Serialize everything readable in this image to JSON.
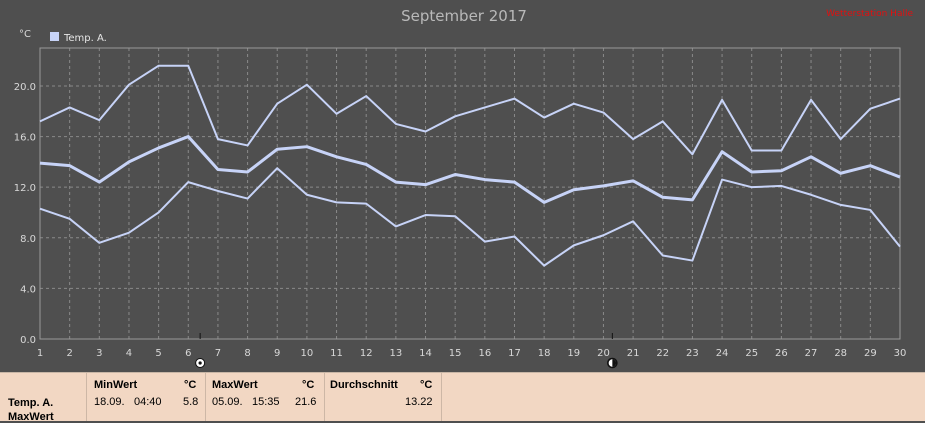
{
  "chart_data": {
    "type": "line",
    "title": "September 2017",
    "corner_label": "Wetterstation Halle",
    "y_unit": "°C",
    "legend": [
      "Temp. A."
    ],
    "x": [
      1,
      2,
      3,
      4,
      5,
      6,
      7,
      8,
      9,
      10,
      11,
      12,
      13,
      14,
      15,
      16,
      17,
      18,
      19,
      20,
      21,
      22,
      23,
      24,
      25,
      26,
      27,
      28,
      29,
      30
    ],
    "ylim": [
      0,
      23
    ],
    "y_ticks": [
      "0.0",
      "4.0",
      "8.0",
      "12.0",
      "16.0",
      "20.0"
    ],
    "grid": true,
    "markers": [
      {
        "x": 6.4,
        "symbol": "sun"
      },
      {
        "x": 20.3,
        "symbol": "moon"
      }
    ],
    "series": [
      {
        "values": [
          17.2,
          18.3,
          17.3,
          20.1,
          21.6,
          21.6,
          15.8,
          15.3,
          18.6,
          20.1,
          17.8,
          19.2,
          17.0,
          16.4,
          17.6,
          18.3,
          19.0,
          17.5,
          18.6,
          17.9,
          15.8,
          17.2,
          14.6,
          18.9,
          14.9,
          14.9,
          18.9,
          15.8,
          18.2,
          19.0
        ]
      },
      {
        "values": [
          13.9,
          13.7,
          12.4,
          14.0,
          15.1,
          16.0,
          13.4,
          13.2,
          15.0,
          15.2,
          14.4,
          13.8,
          12.4,
          12.2,
          13.0,
          12.6,
          12.4,
          10.8,
          11.8,
          12.1,
          12.5,
          11.2,
          11.0,
          14.8,
          13.2,
          13.3,
          14.4,
          13.1,
          13.7,
          12.8
        ]
      },
      {
        "values": [
          10.3,
          9.5,
          7.6,
          8.4,
          10.0,
          12.4,
          11.7,
          11.1,
          13.5,
          11.4,
          10.8,
          10.7,
          8.9,
          9.8,
          9.7,
          7.7,
          8.1,
          5.8,
          7.4,
          8.2,
          9.3,
          6.6,
          6.2,
          12.6,
          12.0,
          12.1,
          11.4,
          10.6,
          10.2,
          7.3
        ]
      }
    ]
  },
  "stats": {
    "row_label_1": "Temp. A.",
    "row_label_2": "MaxWert",
    "min": {
      "header": "MinWert",
      "unit": "°C",
      "date": "18.09.",
      "time": "04:40",
      "value": "5.8"
    },
    "max": {
      "header": "MaxWert",
      "unit": "°C",
      "date": "05.09.",
      "time": "15:35",
      "value": "21.6"
    },
    "avg": {
      "header": "Durchschnitt",
      "unit": "°C",
      "value": "13.22"
    }
  }
}
